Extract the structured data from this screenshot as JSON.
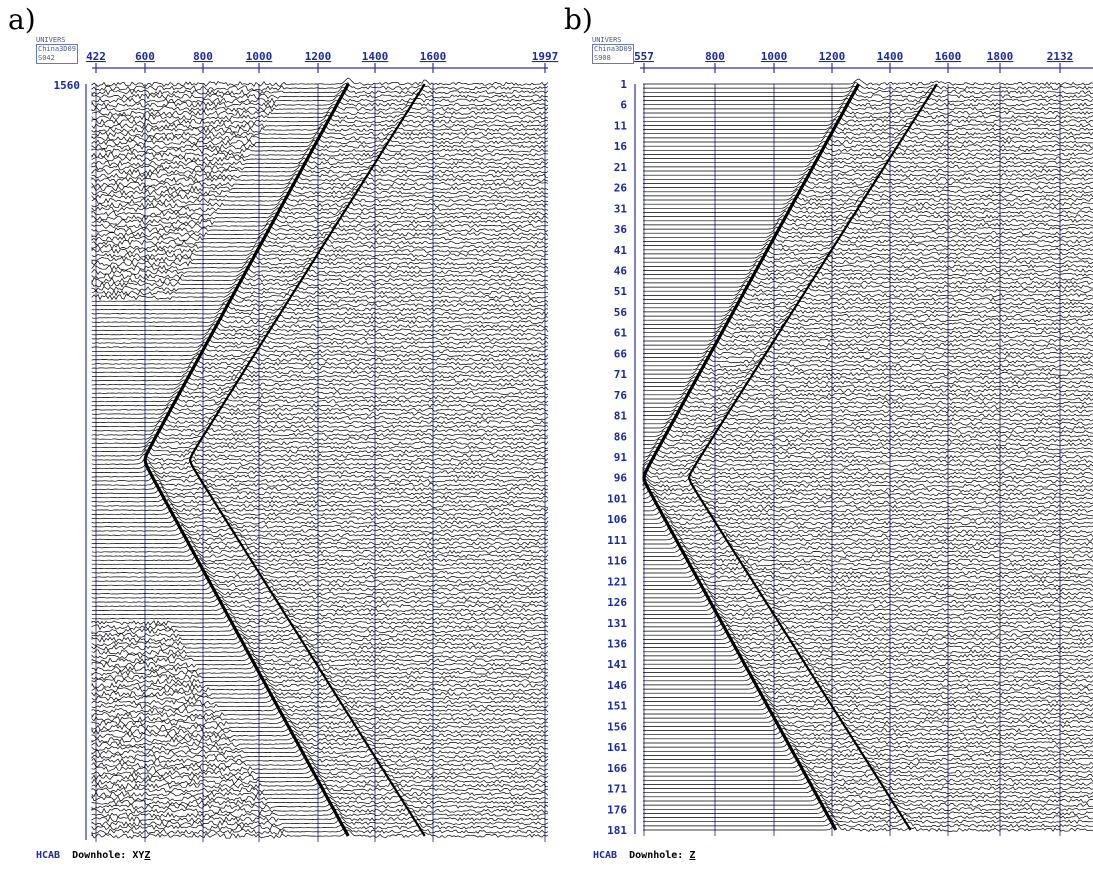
{
  "panels": [
    {
      "label": "a)",
      "header": {
        "line1": "UNIVERS",
        "line2": "China3D09",
        "line3": "S042"
      },
      "footer": {
        "prefix": "HCAB",
        "label": "Downhole:",
        "component_plain": "XY",
        "component_underlined": "Z"
      }
    },
    {
      "label": "b)",
      "header": {
        "line1": "UNIVERS",
        "line2": "China3D09",
        "line3": "S908"
      },
      "footer": {
        "prefix": "HCAB",
        "label": "Downhole:",
        "component_plain": "",
        "component_underlined": "Z"
      }
    }
  ],
  "chart_data": [
    {
      "type": "seismic-wiggle",
      "x_tick_labels": [
        "422",
        "600",
        "800",
        "1000",
        "1200",
        "1400",
        "1600",
        "1997"
      ],
      "x_ticks": [
        422,
        600,
        800,
        1000,
        1200,
        1400,
        1600,
        1997
      ],
      "xlim": [
        422,
        1997
      ],
      "y_tick_labels": [
        "1560"
      ],
      "y_ticks": [
        1560
      ],
      "n_traces": 181,
      "apex_x": 600,
      "apex_trace": 91,
      "noisy_triangles": true,
      "line_color": "#000000",
      "grid_color": "#3030a0"
    },
    {
      "type": "seismic-wiggle",
      "x_tick_labels": [
        "557",
        "800",
        "1000",
        "1200",
        "1400",
        "1600",
        "1800",
        "2132"
      ],
      "x_ticks": [
        557,
        800,
        1000,
        1200,
        1400,
        1600,
        1800,
        2132
      ],
      "xlim": [
        557,
        2132
      ],
      "y_tick_labels": [
        "1",
        "6",
        "11",
        "16",
        "21",
        "26",
        "31",
        "36",
        "41",
        "46",
        "51",
        "56",
        "61",
        "66",
        "71",
        "76",
        "81",
        "86",
        "91",
        "96",
        "101",
        "106",
        "111",
        "116",
        "121",
        "126",
        "131",
        "136",
        "141",
        "146",
        "151",
        "156",
        "161",
        "166",
        "171",
        "176",
        "181"
      ],
      "y_ticks": [
        1,
        6,
        11,
        16,
        21,
        26,
        31,
        36,
        41,
        46,
        51,
        56,
        61,
        66,
        71,
        76,
        81,
        86,
        91,
        96,
        101,
        106,
        111,
        116,
        121,
        126,
        131,
        136,
        141,
        146,
        151,
        156,
        161,
        166,
        171,
        176,
        181
      ],
      "n_traces": 181,
      "apex_x": 557,
      "apex_trace": 96,
      "noisy_triangles": false,
      "line_color": "#000000",
      "grid_color": "#3030a0"
    }
  ]
}
